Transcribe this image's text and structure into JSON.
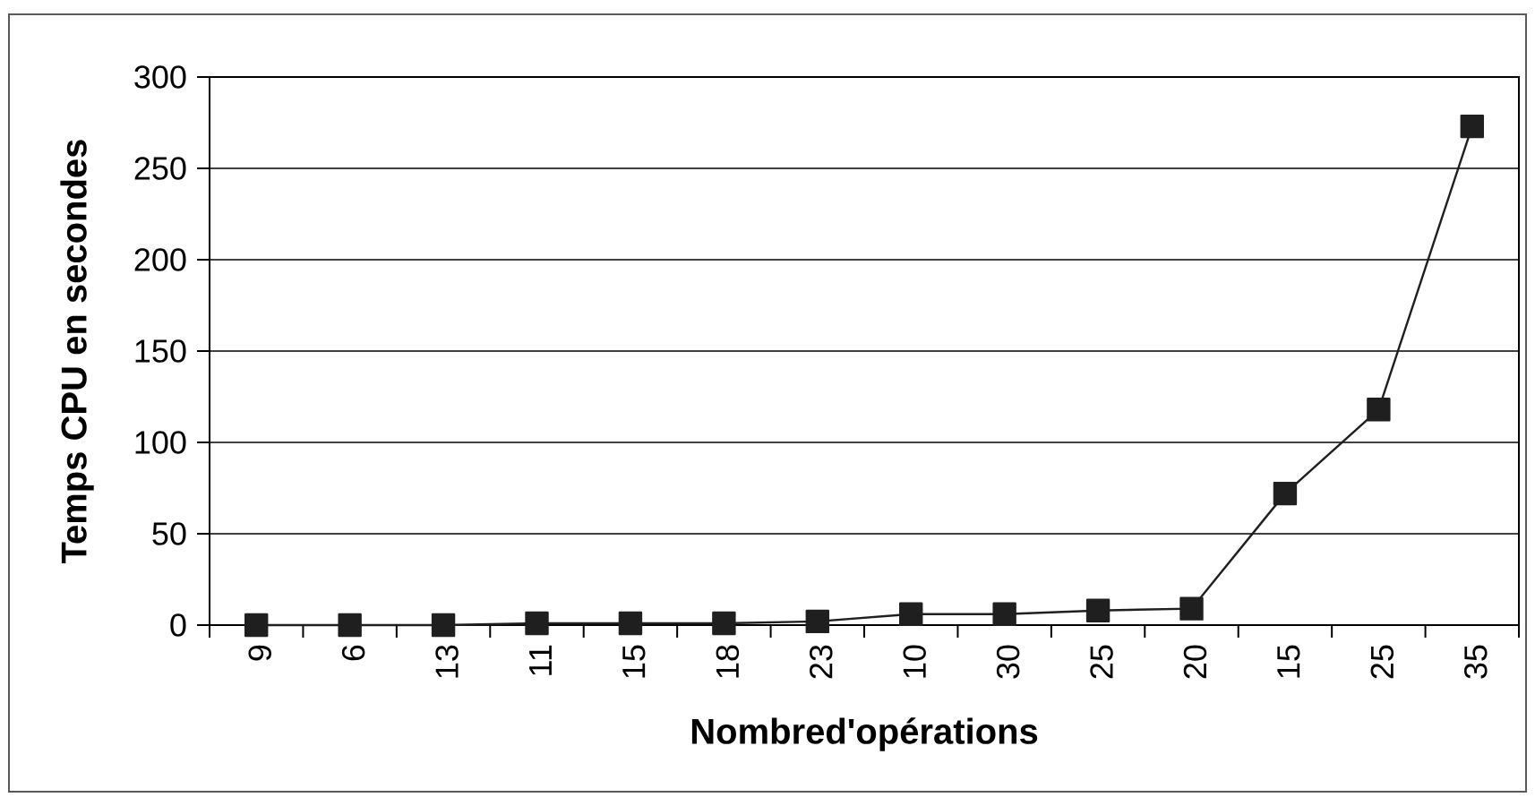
{
  "chart_data": {
    "type": "line",
    "xlabel": "Nombred'opérations",
    "ylabel": "Temps CPU en secondes",
    "categories": [
      "9",
      "6",
      "13",
      "11",
      "15",
      "18",
      "23",
      "10",
      "30",
      "25",
      "20",
      "15",
      "25",
      "35"
    ],
    "series": [
      {
        "color": "#1f1f1f",
        "values": [
          0,
          0,
          0,
          1,
          1,
          1,
          2,
          6,
          6,
          8,
          9,
          72,
          118,
          273
        ]
      }
    ],
    "ylim": [
      0,
      300
    ],
    "yticks": [
      0,
      50,
      100,
      150,
      200,
      250,
      300
    ],
    "grid": "y",
    "marker": "square",
    "line_style": "solid"
  }
}
